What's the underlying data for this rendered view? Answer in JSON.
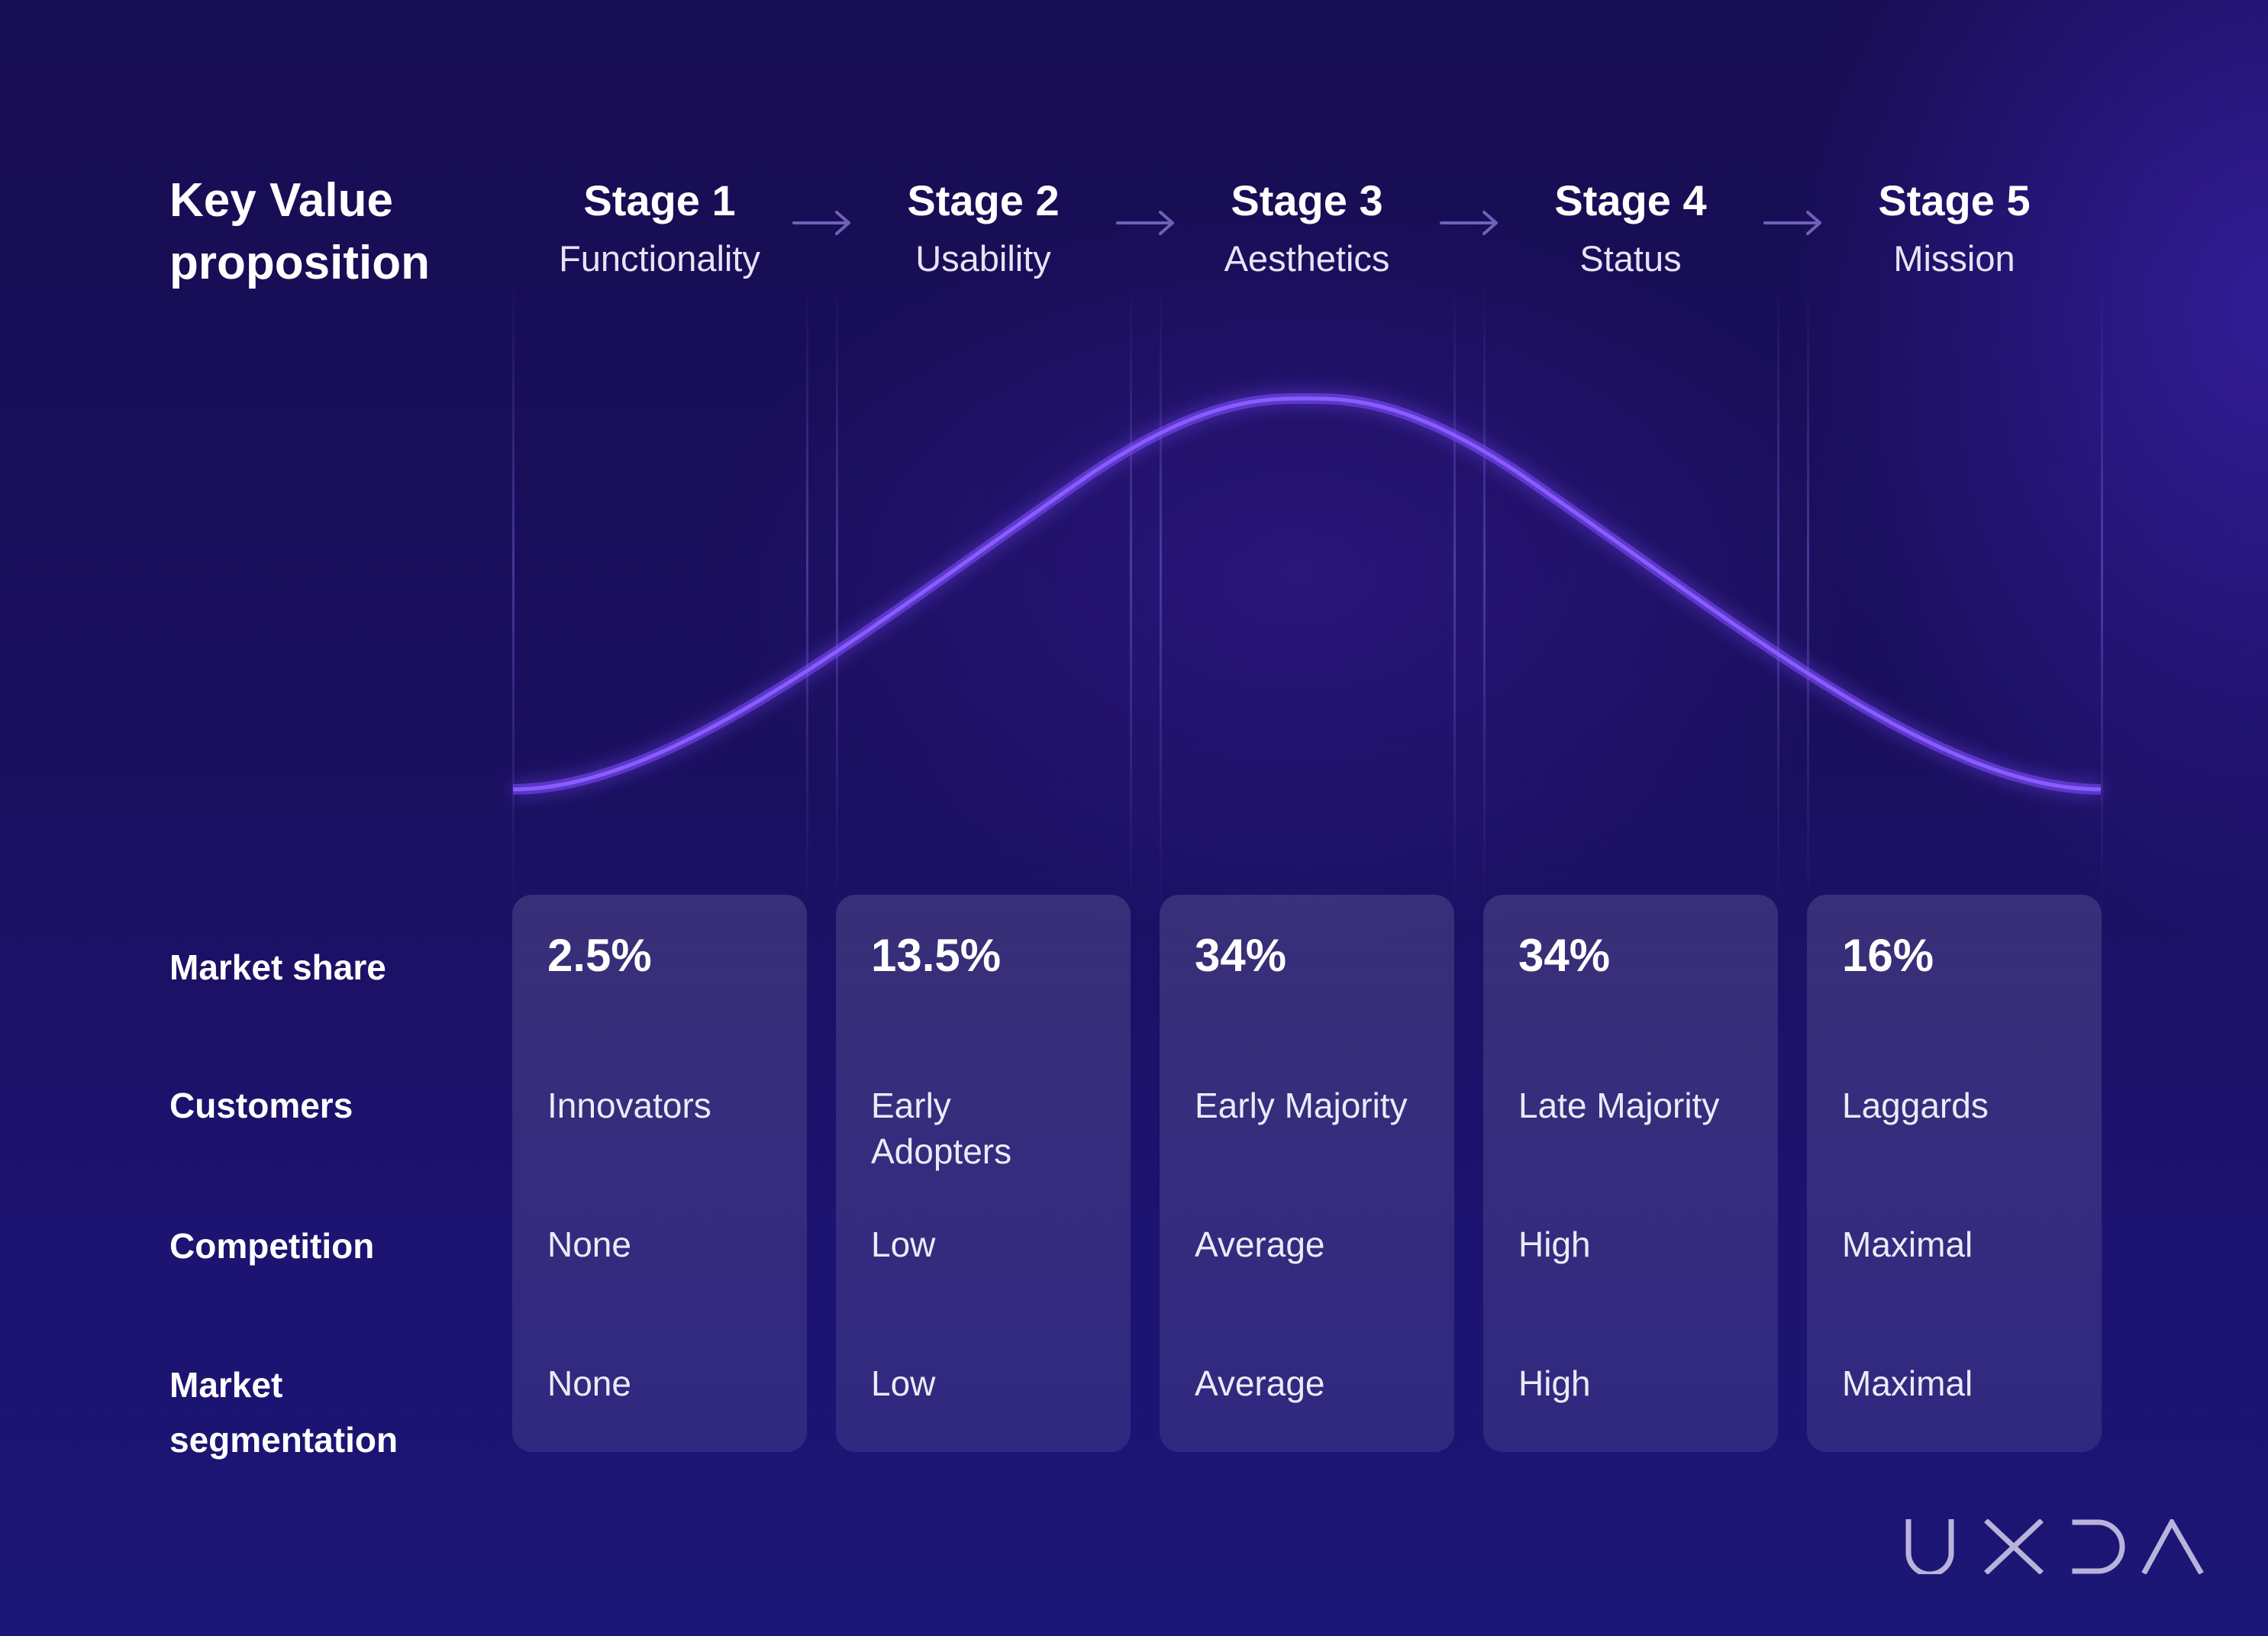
{
  "header": {
    "title": "Key Value\nproposition"
  },
  "row_labels": {
    "market_share": "Market share",
    "customers": "Customers",
    "competition": "Competition",
    "segmentation": "Market\nsegmentation"
  },
  "stages": [
    {
      "title": "Stage 1",
      "subtitle": "Functionality",
      "market_share": "2.5%",
      "customers": "Innovators",
      "competition": "None",
      "segmentation": "None"
    },
    {
      "title": "Stage 2",
      "subtitle": "Usability",
      "market_share": "13.5%",
      "customers": "Early Adopters",
      "competition": "Low",
      "segmentation": "Low"
    },
    {
      "title": "Stage 3",
      "subtitle": "Aesthetics",
      "market_share": "34%",
      "customers": "Early Majority",
      "competition": "Average",
      "segmentation": "Average"
    },
    {
      "title": "Stage 4",
      "subtitle": "Status",
      "market_share": "34%",
      "customers": "Late Majority",
      "competition": "High",
      "segmentation": "High"
    },
    {
      "title": "Stage 5",
      "subtitle": "Mission",
      "market_share": "16%",
      "customers": "Laggards",
      "competition": "Maximal",
      "segmentation": "Maximal"
    }
  ],
  "logo": {
    "text": "UXDA"
  },
  "colors": {
    "curve": "#7b4dff",
    "background": "#1a0f5e",
    "arrow": "#6e62b8"
  },
  "icons": {
    "arrow": "arrow-right-icon"
  }
}
